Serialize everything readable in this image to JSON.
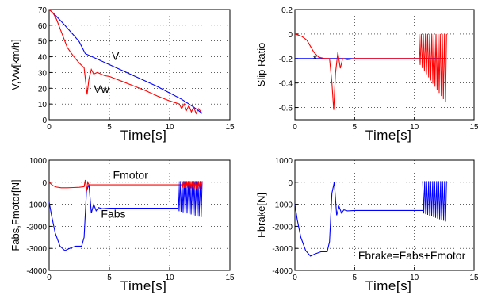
{
  "colors": {
    "blue": "#0000ff",
    "red": "#ff0000",
    "axis": "#000000",
    "grid": "#000000"
  },
  "charts": [
    {
      "type": "line",
      "xlabel": "Time[s]",
      "ylabel": "V,Vw[km/h]",
      "xlim": [
        0,
        15
      ],
      "ylim": [
        0,
        70
      ],
      "xticks": [
        "0",
        "5",
        "10",
        "15"
      ],
      "yticks": [
        "0",
        "10",
        "20",
        "30",
        "40",
        "50",
        "60",
        "70"
      ],
      "grid": true,
      "annotations": [
        {
          "text": "V",
          "x": 5.2,
          "y": 38
        },
        {
          "text": "Vw",
          "x": 3.7,
          "y": 17
        }
      ],
      "series": [
        {
          "color": "#0000ff",
          "x": [
            0,
            0.5,
            1,
            1.5,
            2,
            2.5,
            3,
            4,
            5,
            6,
            7,
            8,
            9,
            10,
            11,
            12,
            12.7
          ],
          "y": [
            70,
            66.5,
            62.5,
            58.3,
            54,
            49.5,
            42,
            38.5,
            35,
            31.5,
            28,
            24.5,
            21,
            17,
            13,
            8,
            4
          ]
        },
        {
          "color": "#ff0000",
          "x": [
            0,
            0.3,
            0.6,
            1,
            1.5,
            2,
            2.5,
            2.9,
            3.15,
            3.3,
            3.5,
            3.7,
            4,
            4.3,
            4.6,
            5,
            6,
            7,
            8,
            9,
            10,
            10.8,
            11,
            11.2,
            11.4,
            11.6,
            11.8,
            12,
            12.2,
            12.4,
            12.7
          ],
          "y": [
            70,
            68,
            64,
            56,
            46,
            40.5,
            36,
            33,
            16,
            26,
            32,
            29,
            30,
            29,
            28,
            27.5,
            24.5,
            21.5,
            18.5,
            15,
            12,
            10,
            7,
            10,
            6,
            9,
            5,
            8,
            4,
            7,
            4
          ]
        }
      ]
    },
    {
      "type": "line",
      "xlabel": "Time[s]",
      "ylabel": "Slip Ratio",
      "xlim": [
        0,
        15
      ],
      "ylim": [
        -0.7,
        0.2
      ],
      "xticks": [
        "0",
        "5",
        "10",
        "15"
      ],
      "yticks": [
        "0.2",
        "0",
        "-0.2",
        "-0.4",
        "-0.6"
      ],
      "grid": true,
      "annotations": [
        {
          "text": "*",
          "x": 1.5,
          "y": -0.23
        }
      ],
      "series": [
        {
          "color": "#0000ff",
          "x": [
            0,
            12.7
          ],
          "y": [
            -0.2,
            -0.2
          ]
        },
        {
          "color": "#ff0000",
          "x": [
            0,
            0.3,
            0.6,
            1,
            1.3,
            1.6,
            2,
            2.5,
            2.9,
            3.1,
            3.25,
            3.4,
            3.6,
            3.8,
            4,
            4.4,
            5,
            6,
            8,
            10,
            10.4
          ],
          "y": [
            0,
            -0.01,
            -0.02,
            -0.05,
            -0.1,
            -0.15,
            -0.19,
            -0.2,
            -0.2,
            -0.4,
            -0.62,
            -0.32,
            -0.15,
            -0.28,
            -0.2,
            -0.21,
            -0.2,
            -0.2,
            -0.2,
            -0.2,
            -0.2
          ]
        }
      ],
      "oscillation": {
        "color": "#ff0000",
        "x_start": 10.4,
        "x_end": 12.7,
        "top": 0.0,
        "bottom_start": -0.24,
        "bottom_end": -0.57,
        "cycles": 13
      }
    },
    {
      "type": "line",
      "xlabel": "Time[s]",
      "ylabel": "Fabs,Fmotor[N]",
      "xlim": [
        0,
        15
      ],
      "ylim": [
        -4000,
        1000
      ],
      "xticks": [
        "0",
        "5",
        "10",
        "15"
      ],
      "yticks": [
        "1000",
        "0",
        "-1000",
        "-2000",
        "-3000",
        "-4000"
      ],
      "grid": true,
      "annotations": [
        {
          "text": "Fmotor",
          "x": 5.3,
          "y": 150
        },
        {
          "text": "Fabs",
          "x": 4.3,
          "y": -1600
        }
      ],
      "series": [
        {
          "color": "#0000ff",
          "x": [
            0,
            0.2,
            0.5,
            0.9,
            1.3,
            1.7,
            2.2,
            2.7,
            2.9,
            3.1,
            3.3,
            3.5,
            3.7,
            3.9,
            4.1,
            4.4,
            5,
            6,
            8,
            10,
            10.7
          ],
          "y": [
            -900,
            -1500,
            -2300,
            -2900,
            -3100,
            -3000,
            -2900,
            -2900,
            -2500,
            -400,
            -100,
            -1400,
            -1000,
            -1300,
            -1150,
            -1200,
            -1180,
            -1180,
            -1180,
            -1180,
            -1180
          ]
        },
        {
          "color": "#ff0000",
          "x": [
            0,
            0.3,
            0.6,
            1,
            1.5,
            2,
            2.5,
            2.9,
            3.0,
            3.1,
            3.2,
            3.3,
            3.5,
            4,
            5,
            8,
            10,
            11,
            12,
            12.7
          ],
          "y": [
            0,
            -150,
            -220,
            -250,
            -250,
            -240,
            -230,
            -200,
            100,
            -400,
            0,
            -120,
            -120,
            -120,
            -120,
            -120,
            -120,
            -120,
            -120,
            -120
          ]
        }
      ],
      "oscillation": {
        "color": "#0000ff",
        "x_start": 10.7,
        "x_end": 12.7,
        "top": 50,
        "bottom_start": -1300,
        "bottom_end": -1600,
        "cycles": 12
      },
      "oscillation2": {
        "color": "#ff0000",
        "x_start": 11.0,
        "x_end": 12.7,
        "top": 50,
        "bottom_start": -250,
        "bottom_end": -300,
        "cycles": 12
      }
    },
    {
      "type": "line",
      "xlabel": "Time[s]",
      "ylabel": "Fbrake[N]",
      "xlim": [
        0,
        15
      ],
      "ylim": [
        -4000,
        1000
      ],
      "xticks": [
        "0",
        "5",
        "10",
        "15"
      ],
      "yticks": [
        "1000",
        "0",
        "-1000",
        "-2000",
        "-3000",
        "-4000"
      ],
      "grid": true,
      "annotations": [
        {
          "text": "Fbrake=Fabs+Fmotor",
          "x": 5.3,
          "y": -3500
        }
      ],
      "series": [
        {
          "color": "#0000ff",
          "x": [
            0,
            0.2,
            0.5,
            0.9,
            1.3,
            1.7,
            2.2,
            2.7,
            2.9,
            3.1,
            3.3,
            3.5,
            3.7,
            3.9,
            4.1,
            4.4,
            5,
            6,
            8,
            10,
            10.7
          ],
          "y": [
            -1000,
            -1700,
            -2500,
            -3100,
            -3350,
            -3250,
            -3150,
            -3150,
            -2700,
            -500,
            0,
            -1500,
            -1100,
            -1400,
            -1250,
            -1300,
            -1280,
            -1280,
            -1280,
            -1280,
            -1280
          ]
        }
      ],
      "oscillation": {
        "color": "#0000ff",
        "x_start": 10.7,
        "x_end": 12.7,
        "top": 50,
        "bottom_start": -1400,
        "bottom_end": -1800,
        "cycles": 12
      }
    }
  ]
}
